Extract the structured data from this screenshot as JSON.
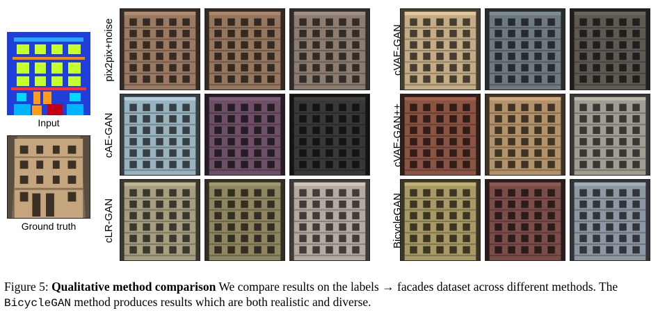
{
  "left": {
    "input_label": "Input",
    "ground_truth_label": "Ground truth"
  },
  "rows_left": [
    {
      "label": "pix2pix+noise",
      "colors": [
        "#9a7a63",
        "#95765f",
        "#8c7d70"
      ]
    },
    {
      "label": "cAE-GAN",
      "colors": [
        "#9ab4bf",
        "#6d5068",
        "#3a3836"
      ]
    },
    {
      "label": "cLR-GAN",
      "colors": [
        "#a79d80",
        "#8e8661",
        "#b4aba0"
      ]
    }
  ],
  "rows_right": [
    {
      "label": "cVAE-GAN",
      "colors": [
        "#c4ad86",
        "#6e7a80",
        "#5e5a52"
      ]
    },
    {
      "label": "cVAE-GAN++",
      "colors": [
        "#8a5444",
        "#b2926a",
        "#a29d92"
      ]
    },
    {
      "label": "BicycleGAN",
      "colors": [
        "#a89a66",
        "#7a4d49",
        "#8d98a2"
      ]
    }
  ],
  "caption": {
    "prefix": "Figure 5: ",
    "title": "Qualitative method comparison",
    "text1": " We compare results on the labels → facades dataset across different methods. The ",
    "code": "BicycleGAN",
    "text2": " method produces results which are both realistic and diverse."
  }
}
